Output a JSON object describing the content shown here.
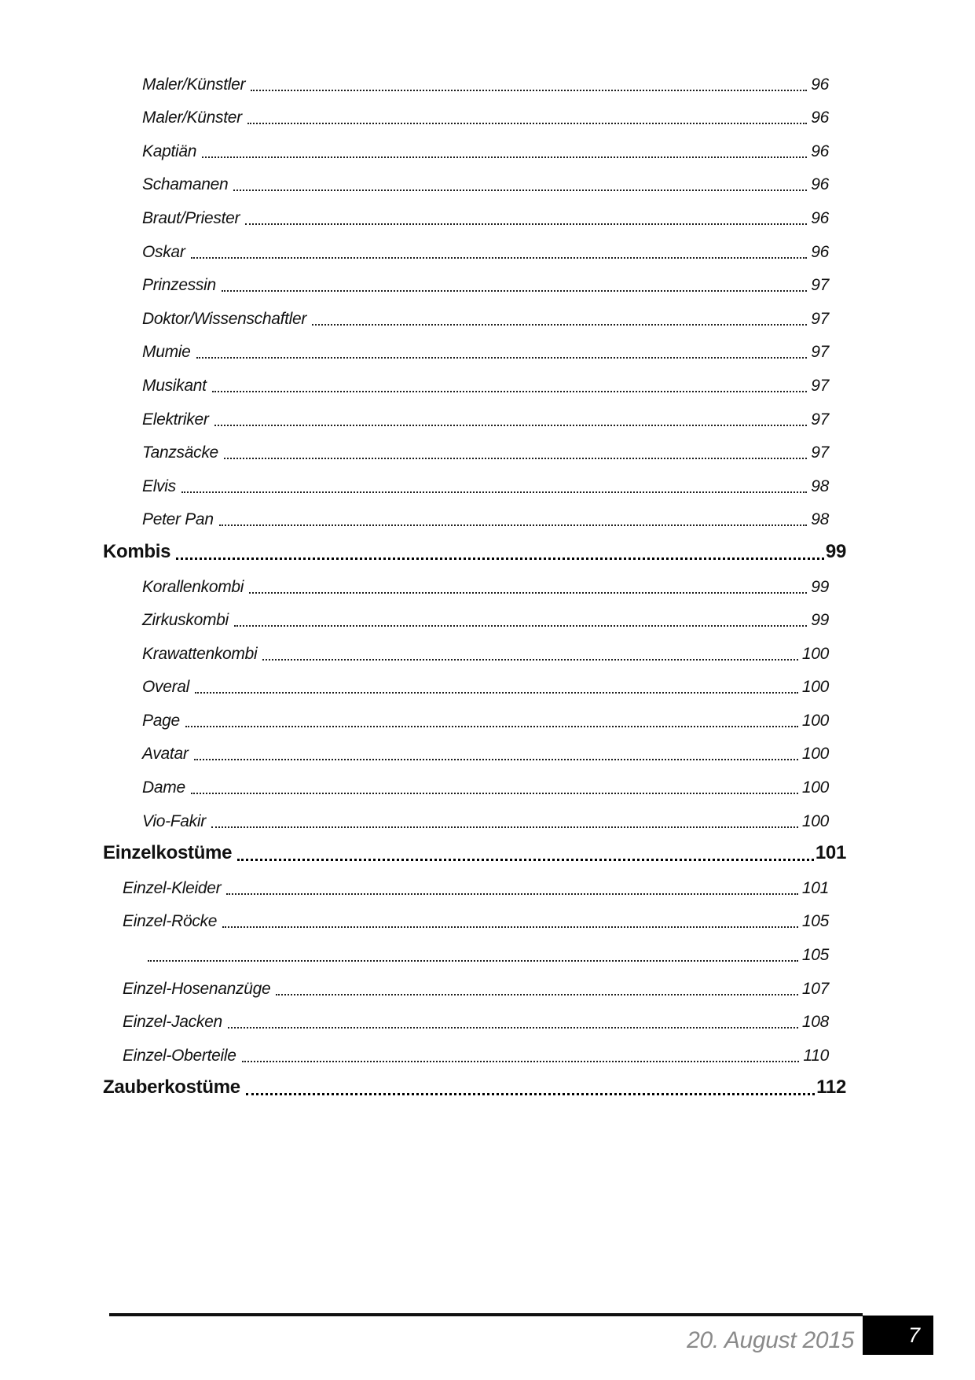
{
  "toc": {
    "entries": [
      {
        "label": "Maler/Künstler",
        "page": "96",
        "level": 3
      },
      {
        "label": "Maler/Künster",
        "page": "96",
        "level": 3
      },
      {
        "label": "Kaptiän",
        "page": "96",
        "level": 3
      },
      {
        "label": "Schamanen",
        "page": "96",
        "level": 3
      },
      {
        "label": "Braut/Priester",
        "page": "96",
        "level": 3
      },
      {
        "label": "Oskar",
        "page": "96",
        "level": 3
      },
      {
        "label": "Prinzessin",
        "page": "97",
        "level": 3
      },
      {
        "label": "Doktor/Wissenschaftler",
        "page": "97",
        "level": 3
      },
      {
        "label": "Mumie",
        "page": "97",
        "level": 3
      },
      {
        "label": "Musikant",
        "page": "97",
        "level": 3
      },
      {
        "label": "Elektriker",
        "page": "97",
        "level": 3
      },
      {
        "label": "Tanzsäcke",
        "page": "97",
        "level": 3
      },
      {
        "label": "Elvis",
        "page": "98",
        "level": 3
      },
      {
        "label": "Peter Pan",
        "page": "98",
        "level": 3
      },
      {
        "label": "Kombis",
        "page": "99",
        "level": 1
      },
      {
        "label": "Korallenkombi",
        "page": "99",
        "level": 3
      },
      {
        "label": "Zirkuskombi",
        "page": "99",
        "level": 3
      },
      {
        "label": "Krawattenkombi",
        "page": "100",
        "level": 3
      },
      {
        "label": "Overal",
        "page": "100",
        "level": 3
      },
      {
        "label": "Page",
        "page": "100",
        "level": 3
      },
      {
        "label": "Avatar",
        "page": "100",
        "level": 3
      },
      {
        "label": "Dame",
        "page": "100",
        "level": 3
      },
      {
        "label": "Vio-Fakir",
        "page": "100",
        "level": 3
      },
      {
        "label": "Einzelkostüme",
        "page": "101",
        "level": 1
      },
      {
        "label": "Einzel-Kleider",
        "page": "101",
        "level": 2
      },
      {
        "label": "Einzel-Röcke",
        "page": "105",
        "level": 2
      },
      {
        "label": "",
        "page": "105",
        "level": 3
      },
      {
        "label": "Einzel-Hosenanzüge",
        "page": "107",
        "level": 2
      },
      {
        "label": "Einzel-Jacken",
        "page": "108",
        "level": 2
      },
      {
        "label": "Einzel-Oberteile",
        "page": "110",
        "level": 2
      },
      {
        "label": "Zauberkostüme",
        "page": "112",
        "level": 1
      }
    ]
  },
  "footer": {
    "date": "20. August 2015",
    "page_number": "7"
  },
  "colors": {
    "text": "#111111",
    "footer_date": "#8a8a8a",
    "page_box_bg": "#000000",
    "page_box_text": "#ffffff"
  }
}
